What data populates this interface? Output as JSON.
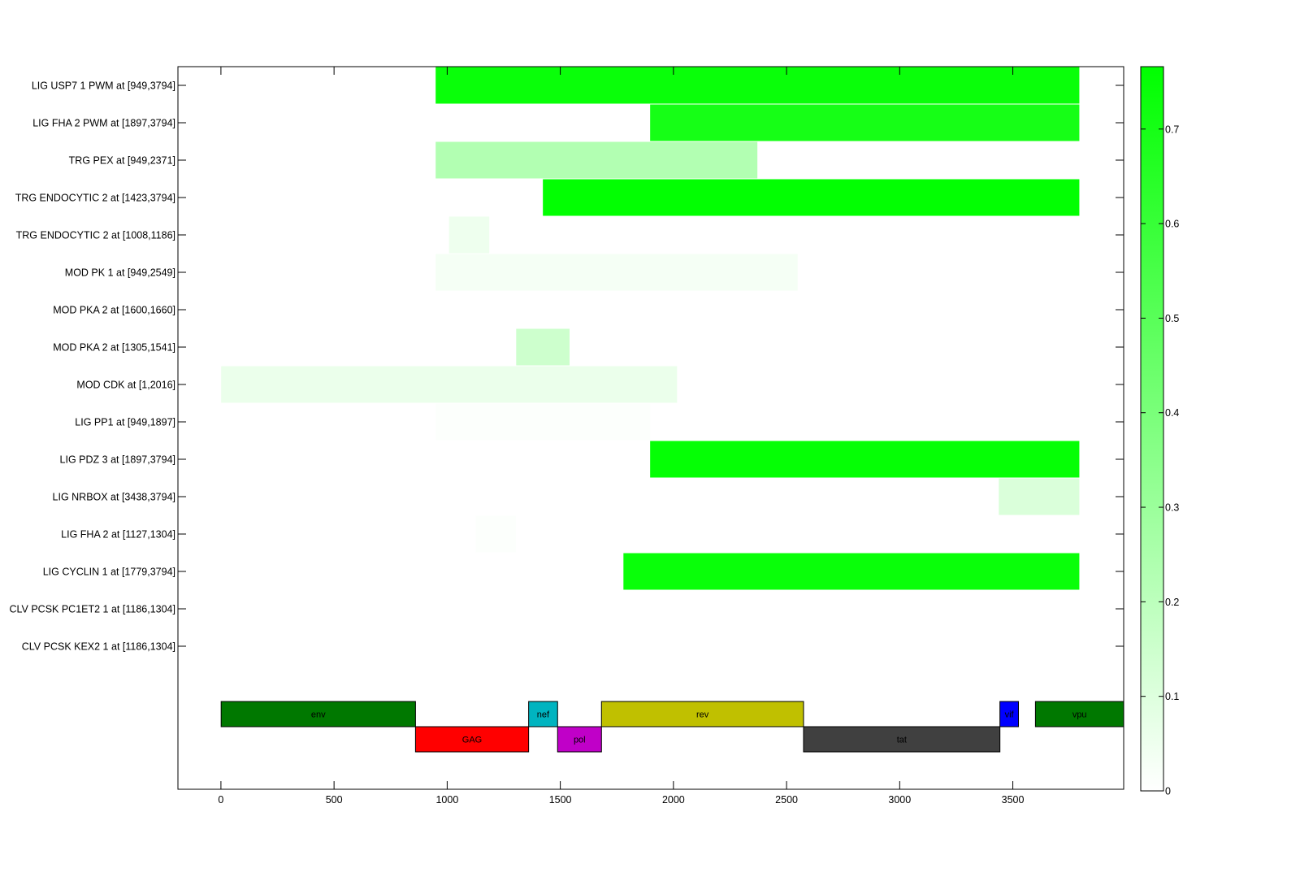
{
  "chart_data": {
    "type": "heatmap",
    "title": "",
    "xlabel": "",
    "ylabel": "",
    "xlim": [
      -190,
      3990
    ],
    "x_ticks": [
      0,
      500,
      1000,
      1500,
      2000,
      2500,
      3000,
      3500
    ],
    "grid": false,
    "rows": [
      {
        "label": "LIG USP7 1 PWM at [949,3794]",
        "start": 949,
        "end": 3794,
        "value": 0.74
      },
      {
        "label": "LIG FHA 2 PWM at [1897,3794]",
        "start": 1897,
        "end": 3794,
        "value": 0.7
      },
      {
        "label": "TRG PEX at [949,2371]",
        "start": 949,
        "end": 2371,
        "value": 0.23
      },
      {
        "label": "TRG ENDOCYTIC 2 at [1423,3794]",
        "start": 1423,
        "end": 3794,
        "value": 0.76
      },
      {
        "label": "TRG ENDOCYTIC 2 at [1008,1186]",
        "start": 1008,
        "end": 1186,
        "value": 0.05
      },
      {
        "label": "MOD PK 1 at [949,2549]",
        "start": 949,
        "end": 2549,
        "value": 0.03
      },
      {
        "label": "MOD PKA 2 at [1600,1660]",
        "start": 1600,
        "end": 1660,
        "value": 0.0
      },
      {
        "label": "MOD PKA 2 at [1305,1541]",
        "start": 1305,
        "end": 1541,
        "value": 0.15
      },
      {
        "label": "MOD CDK at [1,2016]",
        "start": 1,
        "end": 2016,
        "value": 0.06
      },
      {
        "label": "LIG PP1 at [949,1897]",
        "start": 949,
        "end": 1897,
        "value": 0.01
      },
      {
        "label": "LIG PDZ 3 at [1897,3794]",
        "start": 1897,
        "end": 3794,
        "value": 0.75
      },
      {
        "label": "LIG NRBOX at [3438,3794]",
        "start": 3438,
        "end": 3794,
        "value": 0.11
      },
      {
        "label": "LIG FHA 2 at [1127,1304]",
        "start": 1127,
        "end": 1304,
        "value": 0.01
      },
      {
        "label": "LIG CYCLIN 1 at [1779,3794]",
        "start": 1779,
        "end": 3794,
        "value": 0.74
      },
      {
        "label": "CLV PCSK PC1ET2 1 at [1186,1304]",
        "start": 1186,
        "end": 1304,
        "value": 0.0
      },
      {
        "label": "CLV PCSK KEX2 1 at [1186,1304]",
        "start": 1186,
        "end": 1304,
        "value": 0.0
      }
    ],
    "genes": [
      {
        "name": "env",
        "start": 1,
        "end": 860,
        "track": "upper",
        "color": "#007800"
      },
      {
        "name": "GAG",
        "start": 860,
        "end": 1360,
        "track": "lower",
        "color": "#ff0000"
      },
      {
        "name": "nef",
        "start": 1360,
        "end": 1488,
        "track": "upper",
        "color": "#00b4c0"
      },
      {
        "name": "pol",
        "start": 1488,
        "end": 1682,
        "track": "lower",
        "color": "#c000c8"
      },
      {
        "name": "rev",
        "start": 1682,
        "end": 2575,
        "track": "upper",
        "color": "#c0c000"
      },
      {
        "name": "tat",
        "start": 2575,
        "end": 3443,
        "track": "lower",
        "color": "#404040"
      },
      {
        "name": "vif",
        "start": 3443,
        "end": 3525,
        "track": "upper",
        "color": "#0000ff"
      },
      {
        "name": "vpu",
        "start": 3600,
        "end": 3990,
        "track": "upper",
        "color": "#007800"
      }
    ],
    "colorbar": {
      "min": 0,
      "max": 0.766,
      "ticks": [
        0,
        0.1,
        0.2,
        0.3,
        0.4,
        0.5,
        0.6,
        0.7
      ],
      "tick_labels": [
        "0",
        "0.1",
        "0.2",
        "0.3",
        "0.4",
        "0.5",
        "0.6",
        "0.7"
      ],
      "color_low": "#ffffff",
      "color_high": "#00ff00"
    }
  }
}
